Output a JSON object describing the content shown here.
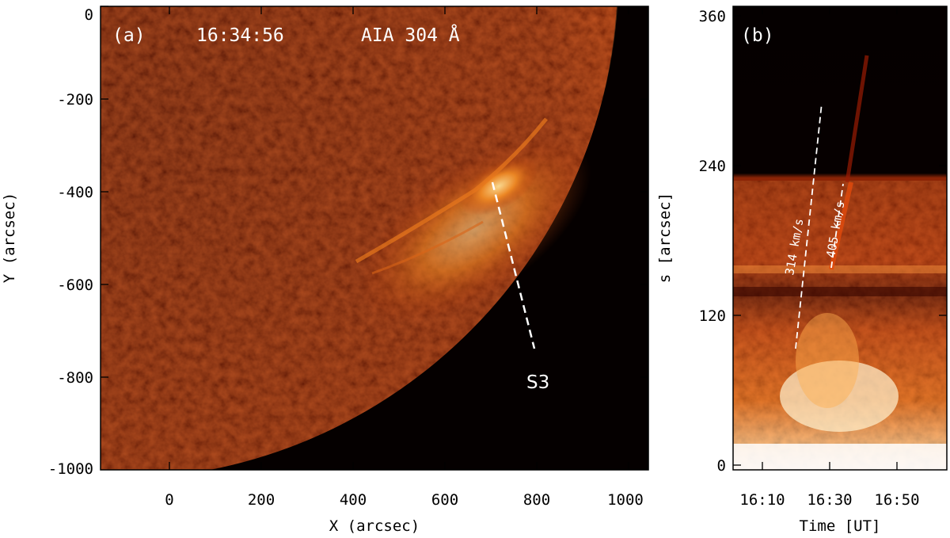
{
  "panel_a": {
    "label": "(a)",
    "time": "16:34:56",
    "channel": "AIA 304 Å",
    "xlabel": "X (arcsec)",
    "ylabel": "Y (arcsec)",
    "x_ticks": [
      "0",
      "200",
      "400",
      "600",
      "800",
      "1000"
    ],
    "y_ticks": [
      "0",
      "-200",
      "-400",
      "-600",
      "-800",
      "-1000"
    ],
    "slit_label": "S3"
  },
  "panel_b": {
    "label": "(b)",
    "xlabel": "Time [UT]",
    "ylabel": "s [arcsec]",
    "x_ticks": [
      "16:10",
      "16:30",
      "16:50"
    ],
    "y_ticks": [
      "0",
      "120",
      "240",
      "360"
    ],
    "speed_1": "314 km/s",
    "speed_2": "405 km/s"
  },
  "colors": {
    "disk_dark": "#3a0600",
    "disk_mid": "#7a1a04",
    "disk_bright": "#c63a0a",
    "flare": "#ffcf6a",
    "background": "#050000"
  }
}
